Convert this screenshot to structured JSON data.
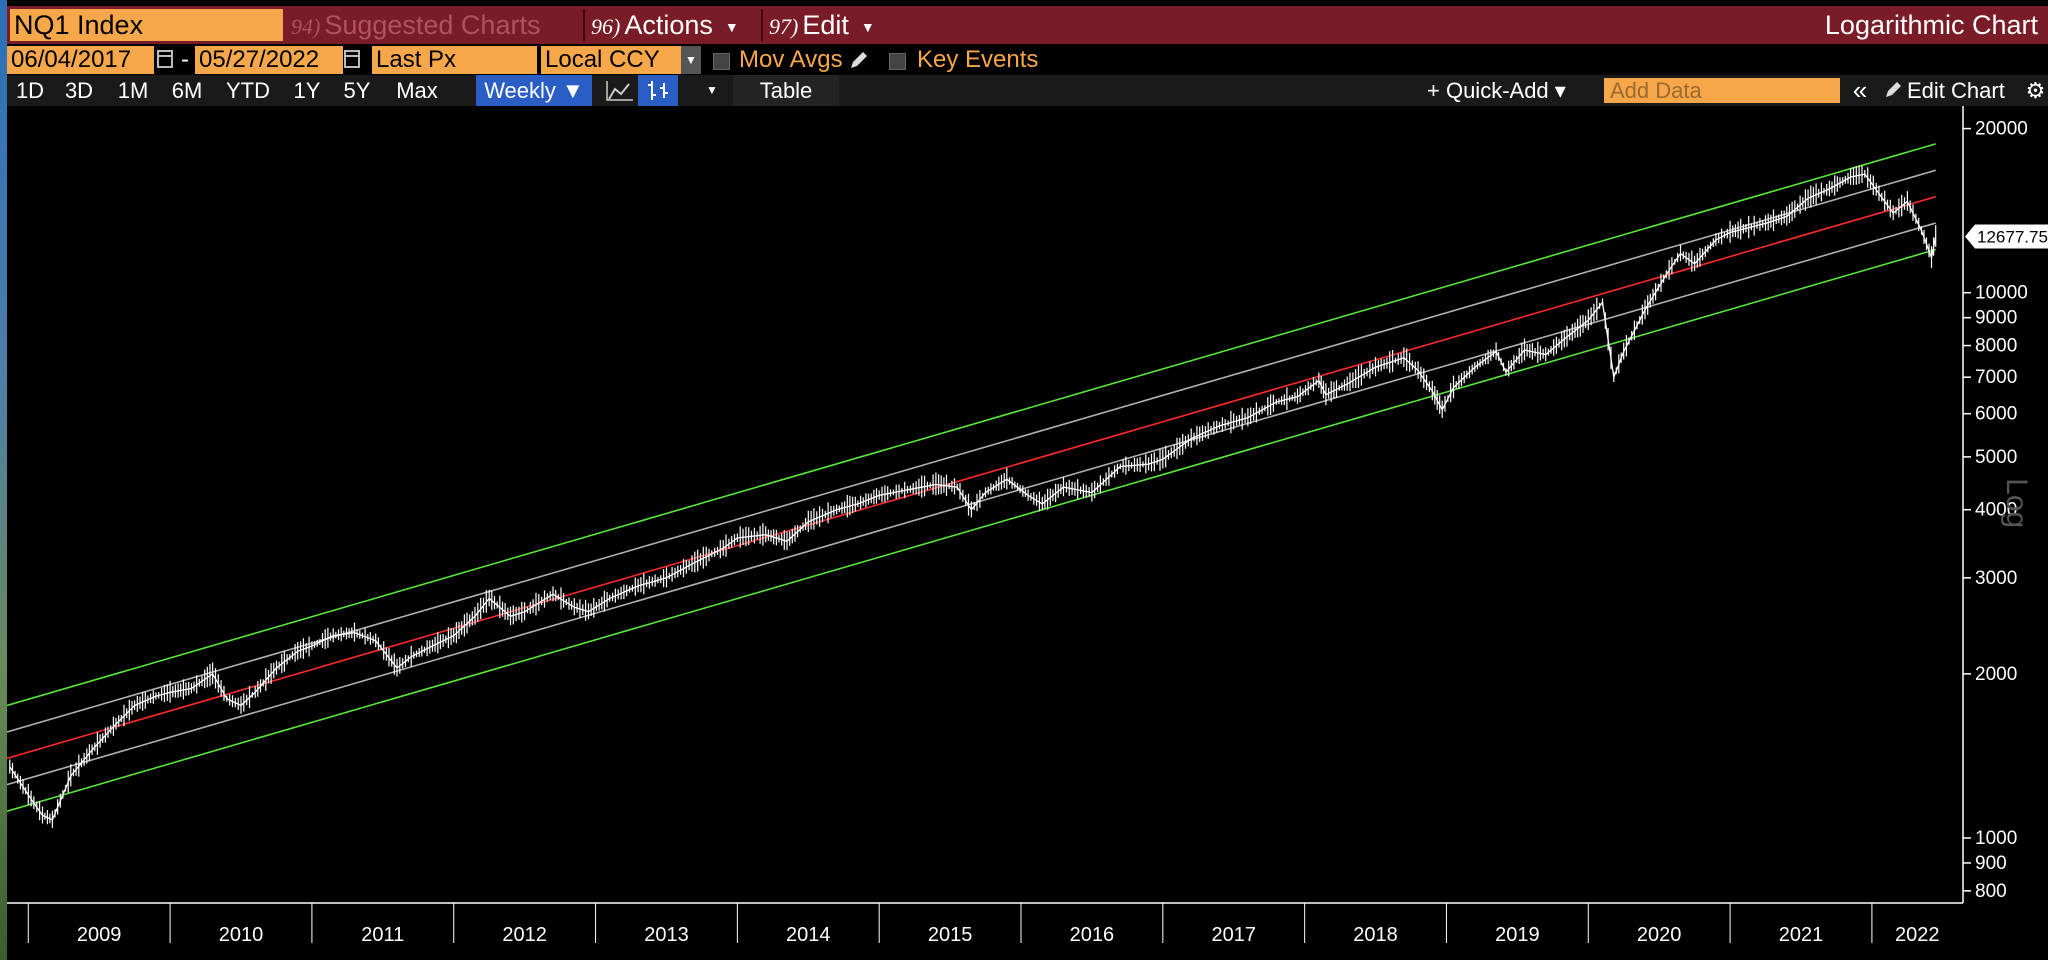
{
  "toolbar": {
    "ticker": "NQ1 Index",
    "menu_suggested_num": "94)",
    "menu_suggested": "Suggested Charts",
    "menu_actions_num": "96)",
    "menu_actions": "Actions",
    "menu_edit_num": "97)",
    "menu_edit": "Edit",
    "chart_mode": "Logarithmic Chart"
  },
  "controls": {
    "start_date": "06/04/2017",
    "date_separator": "-",
    "end_date": "05/27/2022",
    "field": "Last Px",
    "currency": "Local CCY",
    "mov_avgs": "Mov Avgs",
    "key_events": "Key Events"
  },
  "range_bar": {
    "ranges": [
      "1D",
      "3D",
      "1M",
      "6M",
      "YTD",
      "1Y",
      "5Y",
      "Max"
    ],
    "frequency": "Weekly ▼",
    "table": "Table",
    "quick_add": "+ Quick-Add ▾",
    "add_data_placeholder": "Add Data",
    "collapse": "«",
    "edit_chart": "Edit Chart"
  },
  "icons": [
    "calendar-icon",
    "pencil-icon",
    "line-chart-icon",
    "candle-chart-icon",
    "gear-icon",
    "dropdown-arrow-icon"
  ],
  "colors": {
    "header_bar": "#7a1c27",
    "field_orange": "#f6a74a",
    "active_blue": "#2a5ec4",
    "price_line": "#ffffff",
    "regression_line": "#ff2a2a",
    "inner_band": "#b0b0b0",
    "outer_band": "#57e63a"
  },
  "chart_data": {
    "type": "line",
    "scale": "log",
    "frequency": "weekly",
    "ylim": [
      760,
      22000
    ],
    "y_ticks": [
      800,
      900,
      1000,
      2000,
      3000,
      4000,
      5000,
      6000,
      7000,
      8000,
      9000,
      10000,
      20000
    ],
    "y_tick_labels": [
      "800",
      "900",
      "1000",
      "2000",
      "3000",
      "4000",
      "5000",
      "6000",
      "7000",
      "8000",
      "9000",
      "10000",
      "20000"
    ],
    "y_axis_label": "Log",
    "x_range": [
      2008.85,
      2022.6
    ],
    "x_year_labels": [
      "2009",
      "2010",
      "2011",
      "2012",
      "2013",
      "2014",
      "2015",
      "2016",
      "2017",
      "2018",
      "2019",
      "2020",
      "2021",
      "2022"
    ],
    "last_value": 12677.75,
    "last_value_label": "12677.75",
    "series": [
      {
        "kind": "price",
        "points": [
          [
            2008.87,
            1350
          ],
          [
            2009.0,
            1200
          ],
          [
            2009.1,
            1100
          ],
          [
            2009.17,
            1080
          ],
          [
            2009.3,
            1300
          ],
          [
            2009.45,
            1450
          ],
          [
            2009.6,
            1600
          ],
          [
            2009.75,
            1750
          ],
          [
            2009.9,
            1820
          ],
          [
            2010.0,
            1850
          ],
          [
            2010.15,
            1880
          ],
          [
            2010.3,
            2000
          ],
          [
            2010.4,
            1800
          ],
          [
            2010.5,
            1750
          ],
          [
            2010.6,
            1850
          ],
          [
            2010.75,
            2050
          ],
          [
            2010.9,
            2200
          ],
          [
            2011.0,
            2250
          ],
          [
            2011.15,
            2350
          ],
          [
            2011.3,
            2380
          ],
          [
            2011.45,
            2300
          ],
          [
            2011.6,
            2050
          ],
          [
            2011.7,
            2150
          ],
          [
            2011.85,
            2250
          ],
          [
            2012.0,
            2350
          ],
          [
            2012.15,
            2550
          ],
          [
            2012.25,
            2750
          ],
          [
            2012.4,
            2550
          ],
          [
            2012.5,
            2600
          ],
          [
            2012.7,
            2800
          ],
          [
            2012.85,
            2650
          ],
          [
            2012.95,
            2600
          ],
          [
            2013.1,
            2750
          ],
          [
            2013.3,
            2900
          ],
          [
            2013.5,
            3000
          ],
          [
            2013.7,
            3200
          ],
          [
            2013.9,
            3400
          ],
          [
            2014.0,
            3550
          ],
          [
            2014.2,
            3600
          ],
          [
            2014.35,
            3500
          ],
          [
            2014.5,
            3800
          ],
          [
            2014.7,
            4000
          ],
          [
            2014.85,
            4100
          ],
          [
            2015.0,
            4250
          ],
          [
            2015.2,
            4350
          ],
          [
            2015.4,
            4450
          ],
          [
            2015.55,
            4400
          ],
          [
            2015.65,
            4000
          ],
          [
            2015.75,
            4300
          ],
          [
            2015.9,
            4550
          ],
          [
            2016.05,
            4250
          ],
          [
            2016.15,
            4100
          ],
          [
            2016.3,
            4400
          ],
          [
            2016.5,
            4300
          ],
          [
            2016.7,
            4800
          ],
          [
            2016.9,
            4850
          ],
          [
            2017.0,
            4950
          ],
          [
            2017.2,
            5400
          ],
          [
            2017.4,
            5700
          ],
          [
            2017.6,
            5900
          ],
          [
            2017.8,
            6300
          ],
          [
            2017.95,
            6450
          ],
          [
            2018.1,
            6900
          ],
          [
            2018.15,
            6500
          ],
          [
            2018.3,
            6800
          ],
          [
            2018.5,
            7300
          ],
          [
            2018.7,
            7600
          ],
          [
            2018.8,
            7200
          ],
          [
            2018.9,
            6600
          ],
          [
            2018.97,
            6100
          ],
          [
            2019.05,
            6700
          ],
          [
            2019.2,
            7300
          ],
          [
            2019.35,
            7800
          ],
          [
            2019.42,
            7150
          ],
          [
            2019.55,
            7850
          ],
          [
            2019.7,
            7700
          ],
          [
            2019.85,
            8300
          ],
          [
            2020.0,
            8900
          ],
          [
            2020.1,
            9600
          ],
          [
            2020.18,
            7000
          ],
          [
            2020.25,
            7800
          ],
          [
            2020.4,
            9300
          ],
          [
            2020.55,
            10800
          ],
          [
            2020.65,
            11800
          ],
          [
            2020.75,
            11300
          ],
          [
            2020.9,
            12500
          ],
          [
            2021.0,
            12900
          ],
          [
            2021.15,
            13200
          ],
          [
            2021.25,
            13400
          ],
          [
            2021.4,
            13800
          ],
          [
            2021.55,
            14900
          ],
          [
            2021.7,
            15500
          ],
          [
            2021.85,
            16300
          ],
          [
            2021.95,
            16500
          ],
          [
            2022.05,
            15200
          ],
          [
            2022.15,
            14000
          ],
          [
            2022.25,
            14700
          ],
          [
            2022.35,
            13000
          ],
          [
            2022.42,
            11600
          ],
          [
            2022.45,
            12677.75
          ]
        ]
      },
      {
        "kind": "regression_mid",
        "start": [
          2008.85,
          1400
        ],
        "end": [
          2022.45,
          15000
        ]
      },
      {
        "kind": "inner_upper",
        "start": [
          2008.85,
          1565
        ],
        "end": [
          2022.45,
          16770
        ]
      },
      {
        "kind": "inner_lower",
        "start": [
          2008.85,
          1253
        ],
        "end": [
          2022.45,
          13420
        ]
      },
      {
        "kind": "outer_upper",
        "start": [
          2008.85,
          1750
        ],
        "end": [
          2022.45,
          18750
        ]
      },
      {
        "kind": "outer_lower",
        "start": [
          2008.85,
          1120
        ],
        "end": [
          2022.45,
          12000
        ]
      }
    ]
  }
}
